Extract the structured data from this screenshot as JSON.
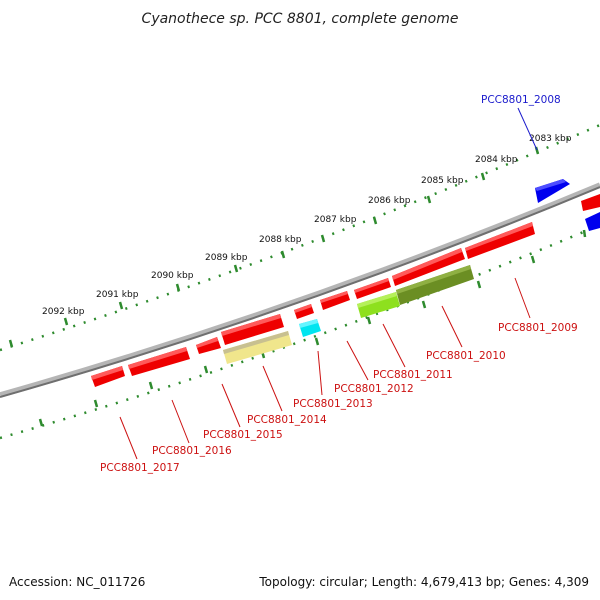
{
  "title": "Cyanothece sp. PCC 8801, complete genome",
  "footer": {
    "accession": "Accession: NC_011726",
    "stats": "Topology: circular; Length: 4,679,413 bp; Genes: 4,309"
  },
  "colors": {
    "backbone": "#8a8a8a",
    "tick_track": "#2e8b2e",
    "label_forward": "#1a1acc",
    "label_reverse": "#cc1111"
  },
  "tick_labels": [
    "2083 kbp",
    "2084 kbp",
    "2085 kbp",
    "2086 kbp",
    "2087 kbp",
    "2088 kbp",
    "2089 kbp",
    "2090 kbp",
    "2091 kbp",
    "2092 kbp"
  ],
  "gene_labels": [
    "PCC8801_2008",
    "PCC8801_2009",
    "PCC8801_2010",
    "PCC8801_2011",
    "PCC8801_2012",
    "PCC8801_2013",
    "PCC8801_2014",
    "PCC8801_2015",
    "PCC8801_2016",
    "PCC8801_2017"
  ]
}
